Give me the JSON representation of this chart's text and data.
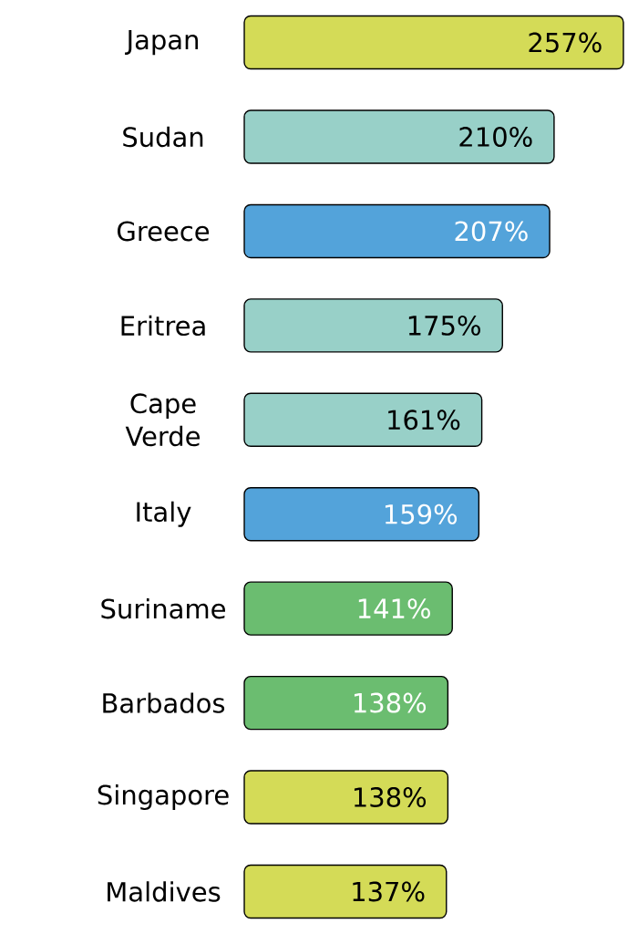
{
  "chart_data": {
    "type": "bar",
    "orientation": "horizontal",
    "categories": [
      "Japan",
      "Sudan",
      "Greece",
      "Eritrea",
      "Cape Verde",
      "Italy",
      "Suriname",
      "Barbados",
      "Singapore",
      "Maldives"
    ],
    "values": [
      257,
      210,
      207,
      175,
      161,
      159,
      141,
      138,
      138,
      137
    ],
    "value_labels": [
      "257%",
      "210%",
      "207%",
      "175%",
      "161%",
      "159%",
      "141%",
      "138%",
      "138%",
      "137%"
    ],
    "colors": [
      "#d4db57",
      "#98d0c8",
      "#53a3da",
      "#98d0c8",
      "#98d0c8",
      "#53a3da",
      "#6bbd70",
      "#6bbd70",
      "#d4db57",
      "#d4db57"
    ]
  }
}
